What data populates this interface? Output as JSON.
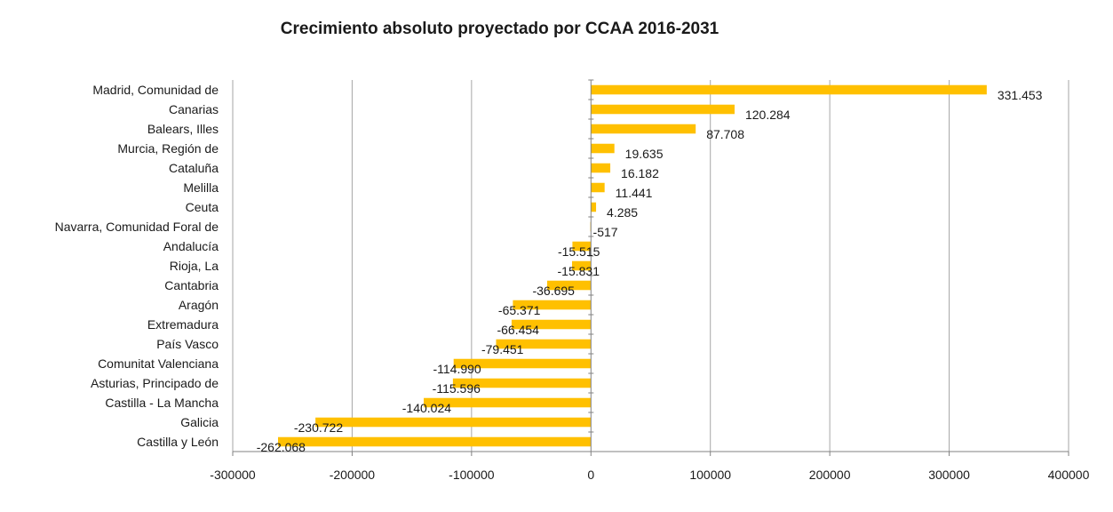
{
  "chart_data": {
    "type": "bar",
    "orientation": "horizontal",
    "title": "Crecimiento absoluto proyectado por CCAA 2016-2031",
    "categories": [
      "Madrid, Comunidad de",
      "Canarias",
      "Balears, Illes",
      "Murcia, Región de",
      "Cataluña",
      "Melilla",
      "Ceuta",
      "Navarra, Comunidad Foral de",
      "Andalucía",
      "Rioja, La",
      "Cantabria",
      "Aragón",
      "Extremadura",
      "País Vasco",
      "Comunitat Valenciana",
      "Asturias, Principado de",
      "Castilla - La Mancha",
      "Galicia",
      "Castilla y León"
    ],
    "values": [
      331453,
      120284,
      87708,
      19635,
      16182,
      11441,
      4285,
      -517,
      -15515,
      -15831,
      -36695,
      -65371,
      -66454,
      -79451,
      -114990,
      -115596,
      -140024,
      -230722,
      -262068
    ],
    "data_labels": [
      "331.453",
      "120.284",
      "87.708",
      "19.635",
      "16.182",
      "11.441",
      "4.285",
      "-517",
      "-15.515",
      "-15.831",
      "-36.695",
      "-65.371",
      "-66.454",
      "-79.451",
      "-114.990",
      "-115.596",
      "-140.024",
      "-230.722",
      "-262.068"
    ],
    "xlim": [
      -300000,
      400000
    ],
    "xticks": [
      -300000,
      -200000,
      -100000,
      0,
      100000,
      200000,
      300000,
      400000
    ],
    "xtick_labels": [
      "-300000",
      "-200000",
      "-100000",
      "0",
      "100000",
      "200000",
      "300000",
      "400000"
    ],
    "grid": "vertical",
    "legend": "none",
    "bar_color": "#FFC000",
    "grid_color": "#A6A6A6",
    "axis_color": "#808080"
  }
}
